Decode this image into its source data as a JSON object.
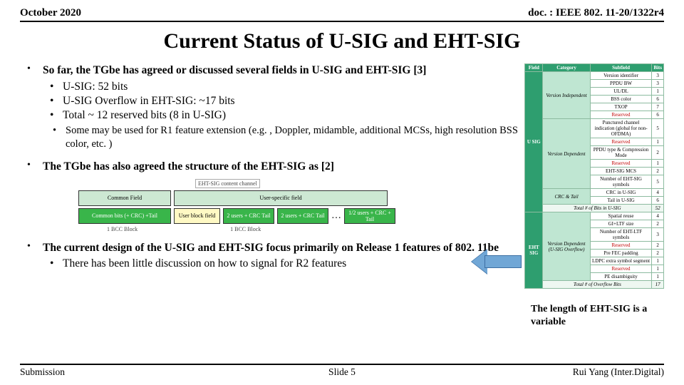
{
  "header": {
    "date": "October 2020",
    "docid": "doc. : IEEE 802. 11-20/1322r4"
  },
  "title": "Current Status of U-SIG and EHT-SIG",
  "bullets": {
    "b1": "So far, the TGbe has agreed or discussed several fields in U-SIG and EHT-SIG [3]",
    "b1s1": "U-SIG: 52 bits",
    "b1s2": "U-SIG Overflow in EHT-SIG: ~17 bits",
    "b1s3": "Total ~ 12 reserved bits (8 in U-SIG)",
    "b1ss1": "Some may be used for R1 feature extension (e.g. , Doppler, midamble, additional MCSs, high resolution BSS color,  etc. )",
    "b2": "The TGbe has also agreed the structure of the EHT-SIG as [2]",
    "b3": "The current design of the U-SIG and EHT-SIG focus primarily on Release 1 features of 802. 11be",
    "b3s1": "There has been little discussion on how to signal for R2 features"
  },
  "diagram": {
    "head1": "EHT-SIG content channel",
    "top1": "Common Field",
    "top2": "User-specific field",
    "bot1": "Common bits (+ CRC) +Tail",
    "bot2": "User block field",
    "bot3": "2 users + CRC Tail",
    "bot4": "2 users + CRC Tail",
    "dots": "…",
    "bot5": "1/2 users + CRC + Tail",
    "cap": "1 BCC Block",
    "cap2": "1 BCC Block"
  },
  "table": {
    "headers": [
      "Field",
      "Category",
      "Subfield",
      "Bits"
    ],
    "groups": [
      {
        "field": "U SIG",
        "cats": [
          {
            "cat": "Version Independent",
            "rows": [
              [
                "Version identifier",
                "3"
              ],
              [
                "PPDU BW",
                "3"
              ],
              [
                "UL/DL",
                "1"
              ],
              [
                "BSS color",
                "6"
              ],
              [
                "TXOP",
                "7"
              ],
              [
                "Reserved",
                "6",
                true
              ]
            ]
          },
          {
            "cat": "Version Dependent",
            "rows": [
              [
                "Punctured channel indication (global for non-OFDMA)",
                "5"
              ],
              [
                "Reserved",
                "1",
                true
              ],
              [
                "PPDU type & Compression Mode",
                "2"
              ],
              [
                "Reserved",
                "1",
                true
              ],
              [
                "EHT-SIG MCS",
                "2"
              ],
              [
                "Number of EHT-SIG symbols",
                "5"
              ]
            ]
          },
          {
            "cat": "CRC & Tail",
            "rows": [
              [
                "CRC in U-SIG",
                "4"
              ],
              [
                "Tail in U-SIG",
                "6"
              ]
            ]
          }
        ],
        "total": [
          "Total # of Bits in U-SIG",
          "52"
        ]
      },
      {
        "field": "EHT SIG",
        "cats": [
          {
            "cat": "Version Dependent (U-SIG Overflow)",
            "rows": [
              [
                "Spatial reuse",
                "4"
              ],
              [
                "GI+LTF size",
                "2"
              ],
              [
                "Number of EHT-LTF symbols",
                "3"
              ],
              [
                "Reserved",
                "2",
                true
              ],
              [
                "Pre FEC padding",
                "2"
              ],
              [
                "LDPC extra symbol segment",
                "1"
              ],
              [
                "Reserved",
                "1",
                true
              ],
              [
                "PE disambiguity",
                "1"
              ]
            ]
          }
        ],
        "total": [
          "Total # of Overflow Bits",
          "17"
        ]
      }
    ]
  },
  "caption_right": "The length of EHT-SIG is a variable",
  "footer": {
    "left": "Submission",
    "center": "Slide 5",
    "right": "Rui Yang (Inter.Digital)"
  },
  "colors": {
    "table_header": "#2e9e6f",
    "table_cat": "#bfe6d2",
    "reserved": "#c00000",
    "diag_top": "#cde8d3",
    "diag_green": "#39b54a",
    "diag_yellow": "#fff9c4",
    "arrow_fill": "#71a7d6",
    "arrow_border": "#3d6fa3"
  }
}
